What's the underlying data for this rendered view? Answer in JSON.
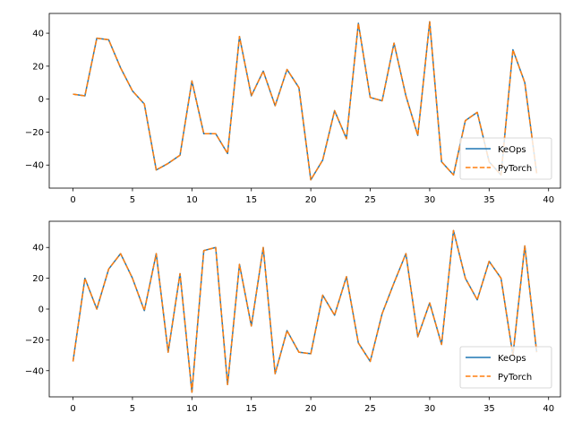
{
  "chart_data": [
    {
      "type": "line",
      "title": "",
      "xlabel": "",
      "ylabel": "",
      "xlim": [
        -2,
        41
      ],
      "ylim": [
        -54,
        52
      ],
      "xticks": [
        0,
        5,
        10,
        15,
        20,
        25,
        30,
        35,
        40
      ],
      "yticks": [
        -40,
        -20,
        0,
        20,
        40
      ],
      "grid": false,
      "legend": "lower-right",
      "x": [
        0,
        1,
        2,
        3,
        4,
        5,
        6,
        7,
        8,
        9,
        10,
        11,
        12,
        13,
        14,
        15,
        16,
        17,
        18,
        19,
        20,
        21,
        22,
        23,
        24,
        25,
        26,
        27,
        28,
        29,
        30,
        31,
        32,
        33,
        34,
        35,
        36,
        37,
        38,
        39
      ],
      "series": [
        {
          "name": "KeOps",
          "color": "#1f77b4",
          "style": "solid",
          "values": [
            3,
            2,
            37,
            36,
            19,
            5,
            -3,
            -43,
            -39,
            -34,
            11,
            -21,
            -21,
            -33,
            38,
            2,
            17,
            -4,
            18,
            7,
            -49,
            -37,
            -7,
            -24,
            46,
            1,
            -1,
            34,
            2,
            -22,
            47,
            -38,
            -46,
            -13,
            -8,
            -38,
            -46,
            30,
            10,
            -45
          ]
        },
        {
          "name": "PyTorch",
          "color": "#ff7f0e",
          "style": "dashed",
          "values": [
            3,
            2,
            37,
            36,
            19,
            5,
            -3,
            -43,
            -39,
            -34,
            11,
            -21,
            -21,
            -33,
            38,
            2,
            17,
            -4,
            18,
            7,
            -49,
            -37,
            -7,
            -24,
            46,
            1,
            -1,
            34,
            2,
            -22,
            47,
            -38,
            -46,
            -13,
            -8,
            -38,
            -46,
            30,
            10,
            -45
          ]
        }
      ]
    },
    {
      "type": "line",
      "title": "",
      "xlabel": "",
      "ylabel": "",
      "xlim": [
        -2,
        41
      ],
      "ylim": [
        -57,
        57
      ],
      "xticks": [
        0,
        5,
        10,
        15,
        20,
        25,
        30,
        35,
        40
      ],
      "yticks": [
        -40,
        -20,
        0,
        20,
        40
      ],
      "grid": false,
      "legend": "lower-right",
      "x": [
        0,
        1,
        2,
        3,
        4,
        5,
        6,
        7,
        8,
        9,
        10,
        11,
        12,
        13,
        14,
        15,
        16,
        17,
        18,
        19,
        20,
        21,
        22,
        23,
        24,
        25,
        26,
        27,
        28,
        29,
        30,
        31,
        32,
        33,
        34,
        35,
        36,
        37,
        38,
        39
      ],
      "series": [
        {
          "name": "KeOps",
          "color": "#1f77b4",
          "style": "solid",
          "values": [
            -34,
            20,
            0,
            26,
            36,
            20,
            -1,
            36,
            -28,
            23,
            -54,
            38,
            40,
            -49,
            29,
            -11,
            40,
            -42,
            -14,
            -28,
            -29,
            9,
            -4,
            21,
            -22,
            -34,
            -3,
            17,
            36,
            -18,
            4,
            -23,
            51,
            20,
            6,
            31,
            20,
            -30,
            41,
            -28
          ]
        },
        {
          "name": "PyTorch",
          "color": "#ff7f0e",
          "style": "dashed",
          "values": [
            -34,
            20,
            0,
            26,
            36,
            20,
            -1,
            36,
            -28,
            23,
            -54,
            38,
            40,
            -49,
            29,
            -11,
            40,
            -42,
            -14,
            -28,
            -29,
            9,
            -4,
            21,
            -22,
            -34,
            -3,
            17,
            36,
            -18,
            4,
            -23,
            51,
            20,
            6,
            31,
            20,
            -30,
            41,
            -28
          ]
        }
      ]
    }
  ]
}
